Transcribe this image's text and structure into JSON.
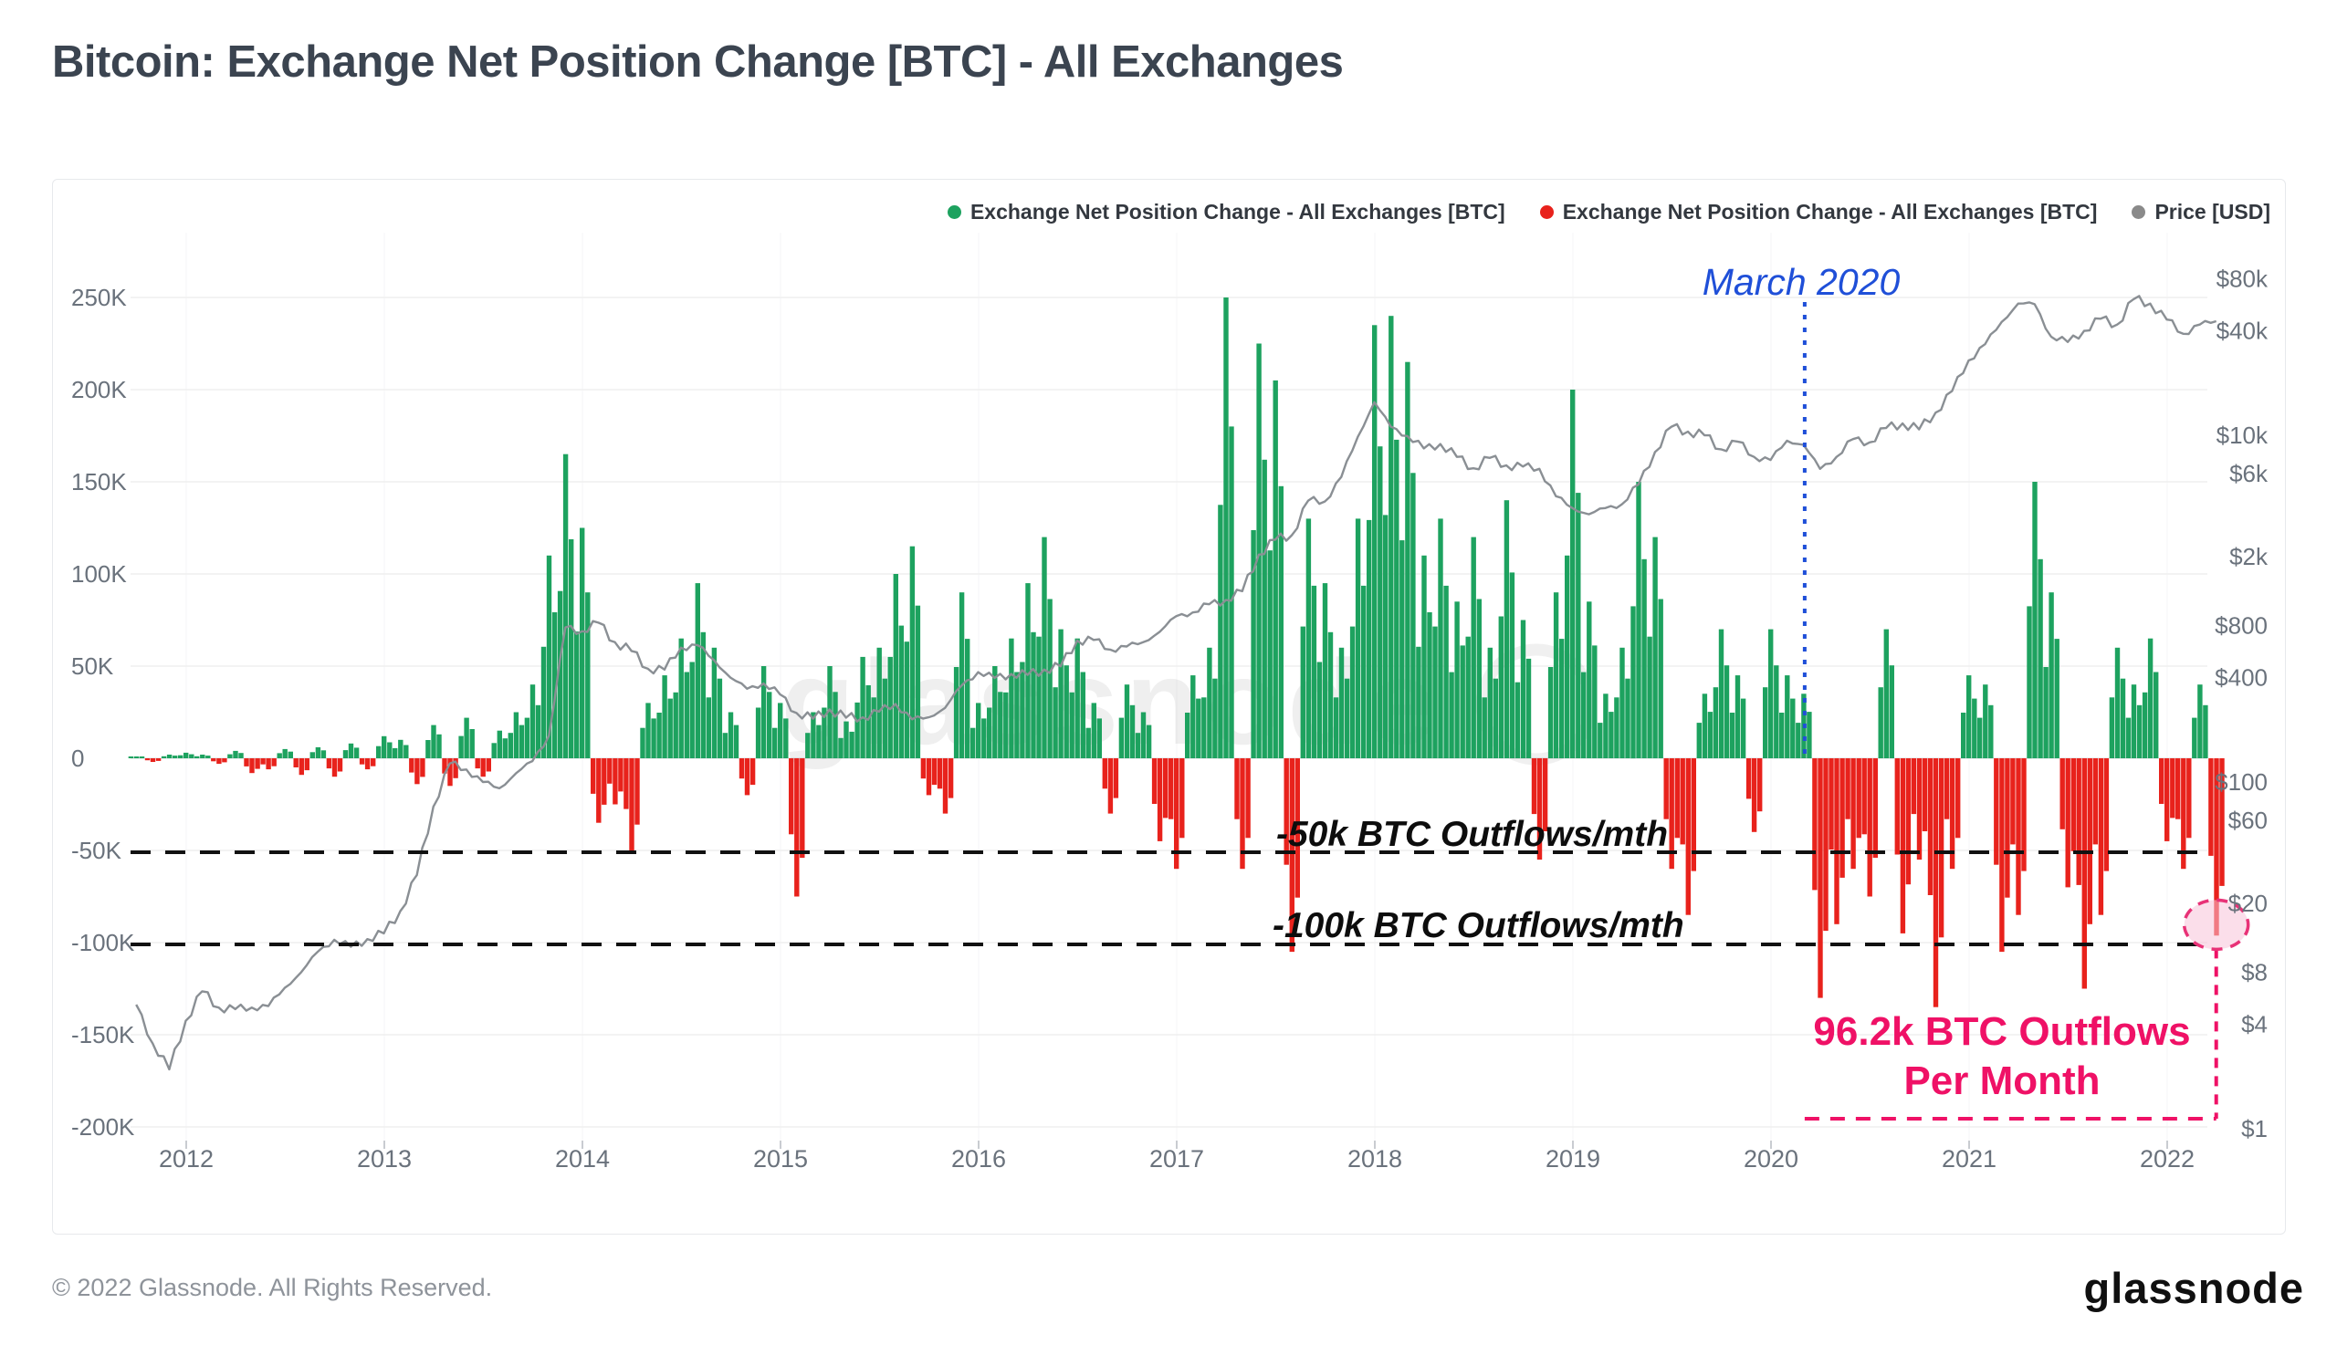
{
  "header": {
    "title": "Bitcoin: Exchange Net Position Change [BTC] - All Exchanges"
  },
  "footer": {
    "copyright": "© 2022 Glassnode. All Rights Reserved.",
    "logo_text": "glassnode"
  },
  "watermark": {
    "text": "glassnode"
  },
  "chart_data": {
    "type": "bar",
    "title": "Bitcoin: Exchange Net Position Change [BTC] - All Exchanges",
    "legend": [
      {
        "label": "Exchange Net Position Change - All Exchanges [BTC]",
        "color": "#1da25f"
      },
      {
        "label": "Exchange Net Position Change - All Exchanges [BTC]",
        "color": "#e8221c"
      },
      {
        "label": "Price [USD]",
        "color": "#8a8a8a"
      }
    ],
    "colors": {
      "positive_bar": "#1da25f",
      "negative_bar": "#e8221c",
      "price_line": "#8a8f94",
      "blue_annotation": "#1f4fd8",
      "pink_annotation": "#ef1166",
      "pink_highlight_fill": "#f8c3d8",
      "dashed_guide": "#111111",
      "grid": "#efefef",
      "axis_text": "#6a727c"
    },
    "x_axis": {
      "ticks": [
        "2012",
        "2013",
        "2014",
        "2015",
        "2016",
        "2017",
        "2018",
        "2019",
        "2020",
        "2021",
        "2022"
      ]
    },
    "left_axis": {
      "unit": "BTC",
      "ticks": [
        "250K",
        "200K",
        "150K",
        "100K",
        "50K",
        "0",
        "-50K",
        "-100K",
        "-150K",
        "-200K"
      ],
      "values": [
        250,
        200,
        150,
        100,
        50,
        0,
        -50,
        -100,
        -150,
        -200
      ]
    },
    "right_axis": {
      "unit": "USD (log scale)",
      "ticks": [
        "$80k",
        "$40k",
        "$10k",
        "$6k",
        "$2k",
        "$800",
        "$400",
        "$100",
        "$60",
        "$20",
        "$8",
        "$4",
        "$1"
      ],
      "values": [
        80000,
        40000,
        10000,
        6000,
        2000,
        800,
        400,
        100,
        60,
        20,
        8,
        4,
        1
      ]
    },
    "series": {
      "start_month": "2011-09",
      "net_position_change_btc_k": [
        1,
        -2,
        2,
        3,
        2,
        -3,
        4,
        -8,
        -6,
        5,
        -9,
        6,
        -10,
        8,
        -6,
        12,
        10,
        -14,
        18,
        -15,
        22,
        -10,
        15,
        25,
        40,
        110,
        165,
        125,
        -35,
        -25,
        -50,
        30,
        45,
        65,
        95,
        60,
        25,
        -20,
        50,
        30,
        -75,
        25,
        50,
        20,
        55,
        60,
        100,
        115,
        -20,
        -30,
        90,
        30,
        50,
        65,
        95,
        120,
        70,
        65,
        30,
        -30,
        40,
        25,
        -45,
        -60,
        45,
        60,
        250,
        -60,
        225,
        205,
        -105,
        130,
        95,
        60,
        130,
        235,
        240,
        215,
        110,
        130,
        85,
        120,
        60,
        140,
        75,
        -55,
        90,
        200,
        85,
        35,
        60,
        150,
        120,
        -60,
        -85,
        35,
        70,
        45,
        -40,
        70,
        45,
        35,
        -130,
        -90,
        -60,
        -75,
        70,
        -95,
        -55,
        -135,
        -60,
        45,
        40,
        -105,
        -85,
        150,
        90,
        -70,
        -125,
        -85,
        60,
        40,
        65,
        -45,
        -60,
        40,
        -96.2
      ],
      "price_usd": [
        5.2,
        3.1,
        2.2,
        4.2,
        6.2,
        5.0,
        4.9,
        5.0,
        5.1,
        6.5,
        8.0,
        10.5,
        12.3,
        11.2,
        12.4,
        13.4,
        18,
        29,
        72,
        128,
        118,
        100,
        92,
        112,
        132,
        185,
        780,
        740,
        830,
        640,
        570,
        450,
        445,
        595,
        615,
        505,
        400,
        345,
        370,
        320,
        250,
        232,
        262,
        235,
        236,
        255,
        282,
        230,
        236,
        268,
        360,
        430,
        398,
        420,
        415,
        445,
        465,
        655,
        660,
        580,
        605,
        640,
        735,
        905,
        950,
        1060,
        1120,
        1260,
        2050,
        2500,
        2650,
        4200,
        4150,
        5750,
        9800,
        15500,
        11200,
        9900,
        8400,
        8900,
        7500,
        6450,
        7400,
        6700,
        6600,
        6400,
        4450,
        3800,
        3500,
        3800,
        4000,
        5200,
        8000,
        11200,
        10500,
        10000,
        8300,
        9200,
        7500,
        7200,
        9300,
        8800,
        6400,
        7500,
        9500,
        9100,
        11000,
        11700,
        10800,
        13500,
        18000,
        27000,
        33500,
        45000,
        57500,
        57000,
        37000,
        34500,
        40000,
        47000,
        43500,
        61000,
        57500,
        46500,
        38500,
        43500,
        45500
      ]
    },
    "annotations": {
      "march_2020": {
        "label": "March 2020",
        "x_year": 2020.17
      },
      "outflow_50k": {
        "label": "-50k BTC Outflows/mth",
        "value_k": -50
      },
      "outflow_100k": {
        "label": "-100k BTC Outflows/mth",
        "value_k": -100
      },
      "outflow_96k": {
        "line1": "96.2k BTC Outflows",
        "line2": "Per Month",
        "value_k": -96.2
      }
    }
  }
}
